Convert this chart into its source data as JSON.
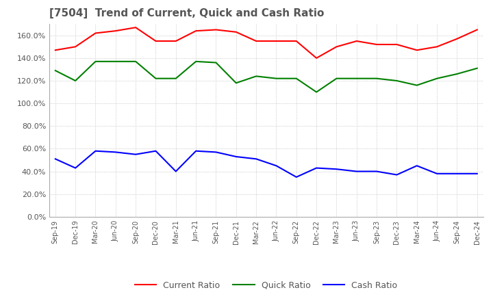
{
  "title": "[7504]  Trend of Current, Quick and Cash Ratio",
  "x_labels": [
    "Sep-19",
    "Dec-19",
    "Mar-20",
    "Jun-20",
    "Sep-20",
    "Dec-20",
    "Mar-21",
    "Jun-21",
    "Sep-21",
    "Dec-21",
    "Mar-22",
    "Jun-22",
    "Sep-22",
    "Dec-22",
    "Mar-23",
    "Jun-23",
    "Sep-23",
    "Dec-23",
    "Mar-24",
    "Jun-24",
    "Sep-24",
    "Dec-24"
  ],
  "current_ratio": [
    147,
    150,
    162,
    164,
    167,
    155,
    155,
    164,
    165,
    163,
    155,
    155,
    155,
    140,
    150,
    155,
    152,
    152,
    147,
    150,
    157,
    165
  ],
  "quick_ratio": [
    129,
    120,
    137,
    137,
    137,
    122,
    122,
    137,
    136,
    118,
    124,
    122,
    122,
    110,
    122,
    122,
    122,
    120,
    116,
    122,
    126,
    131
  ],
  "cash_ratio": [
    51,
    43,
    58,
    57,
    55,
    58,
    40,
    58,
    57,
    53,
    51,
    45,
    35,
    43,
    42,
    40,
    40,
    37,
    45,
    38,
    38,
    38
  ],
  "current_color": "#ff0000",
  "quick_color": "#008000",
  "cash_color": "#0000ff",
  "ylim": [
    0,
    170
  ],
  "yticks": [
    0,
    20,
    40,
    60,
    80,
    100,
    120,
    140,
    160
  ],
  "background_color": "#ffffff",
  "title_color": "#555555",
  "grid_color": "#bbbbbb"
}
